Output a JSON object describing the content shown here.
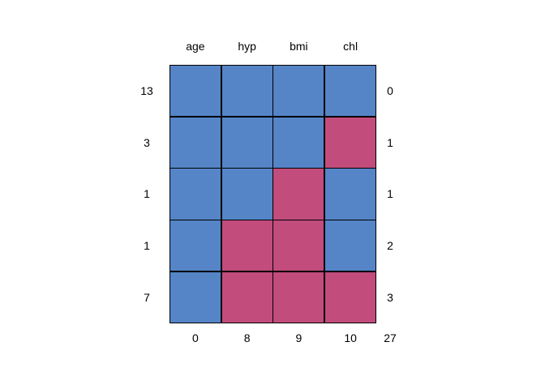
{
  "figure": {
    "background": "#ffffff",
    "description": "Missing data pattern plot (R mice md.pattern style)"
  },
  "chart_data": {
    "type": "heatmap",
    "title": "",
    "columns": [
      "age",
      "hyp",
      "bmi",
      "chl"
    ],
    "rows": [
      {
        "left_count": "13",
        "pattern": [
          1,
          1,
          1,
          1
        ],
        "right_count": "0"
      },
      {
        "left_count": "3",
        "pattern": [
          1,
          1,
          1,
          0
        ],
        "right_count": "1"
      },
      {
        "left_count": "1",
        "pattern": [
          1,
          1,
          0,
          1
        ],
        "right_count": "1"
      },
      {
        "left_count": "1",
        "pattern": [
          1,
          0,
          0,
          1
        ],
        "right_count": "2"
      },
      {
        "left_count": "7",
        "pattern": [
          1,
          0,
          0,
          0
        ],
        "right_count": "3"
      }
    ],
    "column_missing_counts": [
      "0",
      "8",
      "9",
      "10"
    ],
    "total_missing": "27",
    "colors": {
      "observed": "#5585C7",
      "missing": "#C24C7C",
      "gridline": "#000000",
      "text": "#000000"
    },
    "legend": null,
    "cell_meaning": {
      "1": "observed (blue)",
      "0": "missing (red)"
    }
  }
}
